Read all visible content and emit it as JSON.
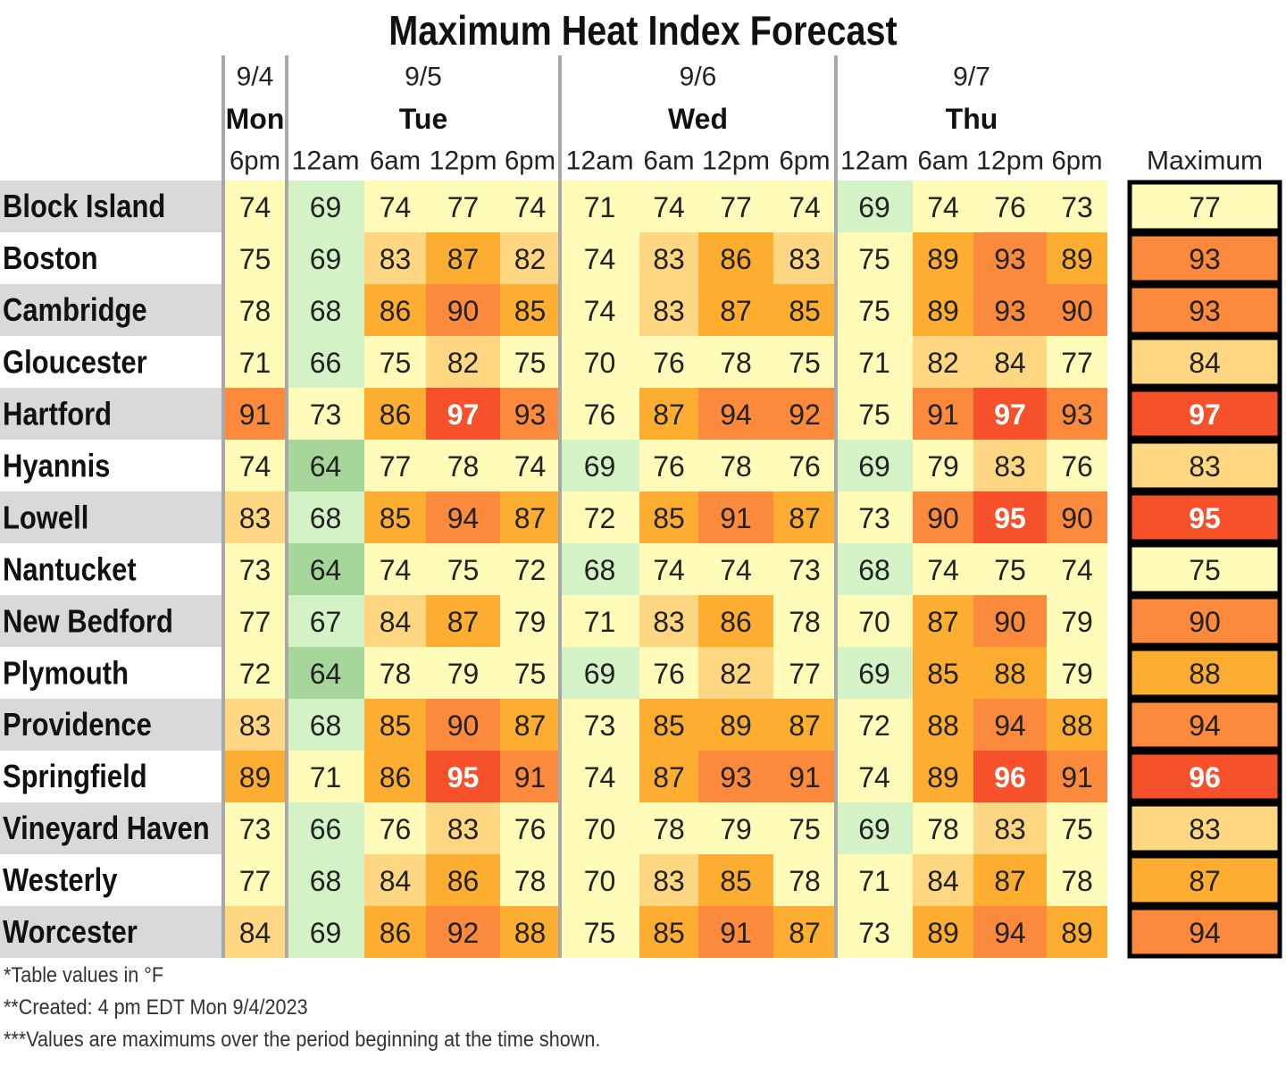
{
  "chart_data": {
    "type": "table",
    "title": "Maximum Heat Index Forecast",
    "days": [
      {
        "date": "9/4",
        "day": "Mon",
        "periods": [
          "6pm"
        ]
      },
      {
        "date": "9/5",
        "day": "Tue",
        "periods": [
          "12am",
          "6am",
          "12pm",
          "6pm"
        ]
      },
      {
        "date": "9/6",
        "day": "Wed",
        "periods": [
          "12am",
          "6am",
          "12pm",
          "6pm"
        ]
      },
      {
        "date": "9/7",
        "day": "Thu",
        "periods": [
          "12am",
          "6am",
          "12pm",
          "6pm"
        ]
      }
    ],
    "max_header": "Maximum",
    "rows": [
      {
        "location": "Block Island",
        "values": [
          74,
          69,
          74,
          77,
          74,
          71,
          74,
          77,
          74,
          69,
          74,
          76,
          73
        ],
        "max": 77
      },
      {
        "location": "Boston",
        "values": [
          75,
          69,
          83,
          87,
          82,
          74,
          83,
          86,
          83,
          75,
          89,
          93,
          89
        ],
        "max": 93
      },
      {
        "location": "Cambridge",
        "values": [
          78,
          68,
          86,
          90,
          85,
          74,
          83,
          87,
          85,
          75,
          89,
          93,
          90
        ],
        "max": 93
      },
      {
        "location": "Gloucester",
        "values": [
          71,
          66,
          75,
          82,
          75,
          70,
          76,
          78,
          75,
          71,
          82,
          84,
          77
        ],
        "max": 84
      },
      {
        "location": "Hartford",
        "values": [
          91,
          73,
          86,
          97,
          93,
          76,
          87,
          94,
          92,
          75,
          91,
          97,
          93
        ],
        "max": 97
      },
      {
        "location": "Hyannis",
        "values": [
          74,
          64,
          77,
          78,
          74,
          69,
          76,
          78,
          76,
          69,
          79,
          83,
          76
        ],
        "max": 83
      },
      {
        "location": "Lowell",
        "values": [
          83,
          68,
          85,
          94,
          87,
          72,
          85,
          91,
          87,
          73,
          90,
          95,
          90
        ],
        "max": 95
      },
      {
        "location": "Nantucket",
        "values": [
          73,
          64,
          74,
          75,
          72,
          68,
          74,
          74,
          73,
          68,
          74,
          75,
          74
        ],
        "max": 75
      },
      {
        "location": "New Bedford",
        "values": [
          77,
          67,
          84,
          87,
          79,
          71,
          83,
          86,
          78,
          70,
          87,
          90,
          79
        ],
        "max": 90
      },
      {
        "location": "Plymouth",
        "values": [
          72,
          64,
          78,
          79,
          75,
          69,
          76,
          82,
          77,
          69,
          85,
          88,
          79
        ],
        "max": 88
      },
      {
        "location": "Providence",
        "values": [
          83,
          68,
          85,
          90,
          87,
          73,
          85,
          89,
          87,
          72,
          88,
          94,
          88
        ],
        "max": 94
      },
      {
        "location": "Springfield",
        "values": [
          89,
          71,
          86,
          95,
          91,
          74,
          87,
          93,
          91,
          74,
          89,
          96,
          91
        ],
        "max": 96
      },
      {
        "location": "Vineyard Haven",
        "values": [
          73,
          66,
          76,
          83,
          76,
          70,
          78,
          79,
          75,
          69,
          78,
          83,
          75
        ],
        "max": 83
      },
      {
        "location": "Westerly",
        "values": [
          77,
          68,
          84,
          86,
          78,
          70,
          83,
          85,
          78,
          71,
          84,
          87,
          78
        ],
        "max": 87
      },
      {
        "location": "Worcester",
        "values": [
          84,
          69,
          86,
          92,
          88,
          75,
          85,
          91,
          87,
          73,
          89,
          94,
          89
        ],
        "max": 94
      }
    ],
    "color_scale": [
      {
        "from": 0,
        "to": 64,
        "fill": "#a6d69a",
        "text": "#222222"
      },
      {
        "from": 65,
        "to": 69,
        "fill": "#d3f2c6",
        "text": "#222222"
      },
      {
        "from": 70,
        "to": 79,
        "fill": "#fffbb8",
        "text": "#222222"
      },
      {
        "from": 80,
        "to": 84,
        "fill": "#ffd782",
        "text": "#222222"
      },
      {
        "from": 85,
        "to": 89,
        "fill": "#fdad30",
        "text": "#222222"
      },
      {
        "from": 90,
        "to": 94,
        "fill": "#fb8a3c",
        "text": "#222222"
      },
      {
        "from": 95,
        "to": 99,
        "fill": "#f6512b",
        "text": "#ffffff"
      }
    ],
    "colors": {
      "label_band": "#d9d9d9",
      "divider": "#a8a8a8",
      "max_border": "#000000"
    }
  },
  "notes": [
    "*Table values in °F",
    "**Created: 4 pm EDT Mon 9/4/2023",
    "***Values are maximums over the period beginning at the time shown."
  ]
}
